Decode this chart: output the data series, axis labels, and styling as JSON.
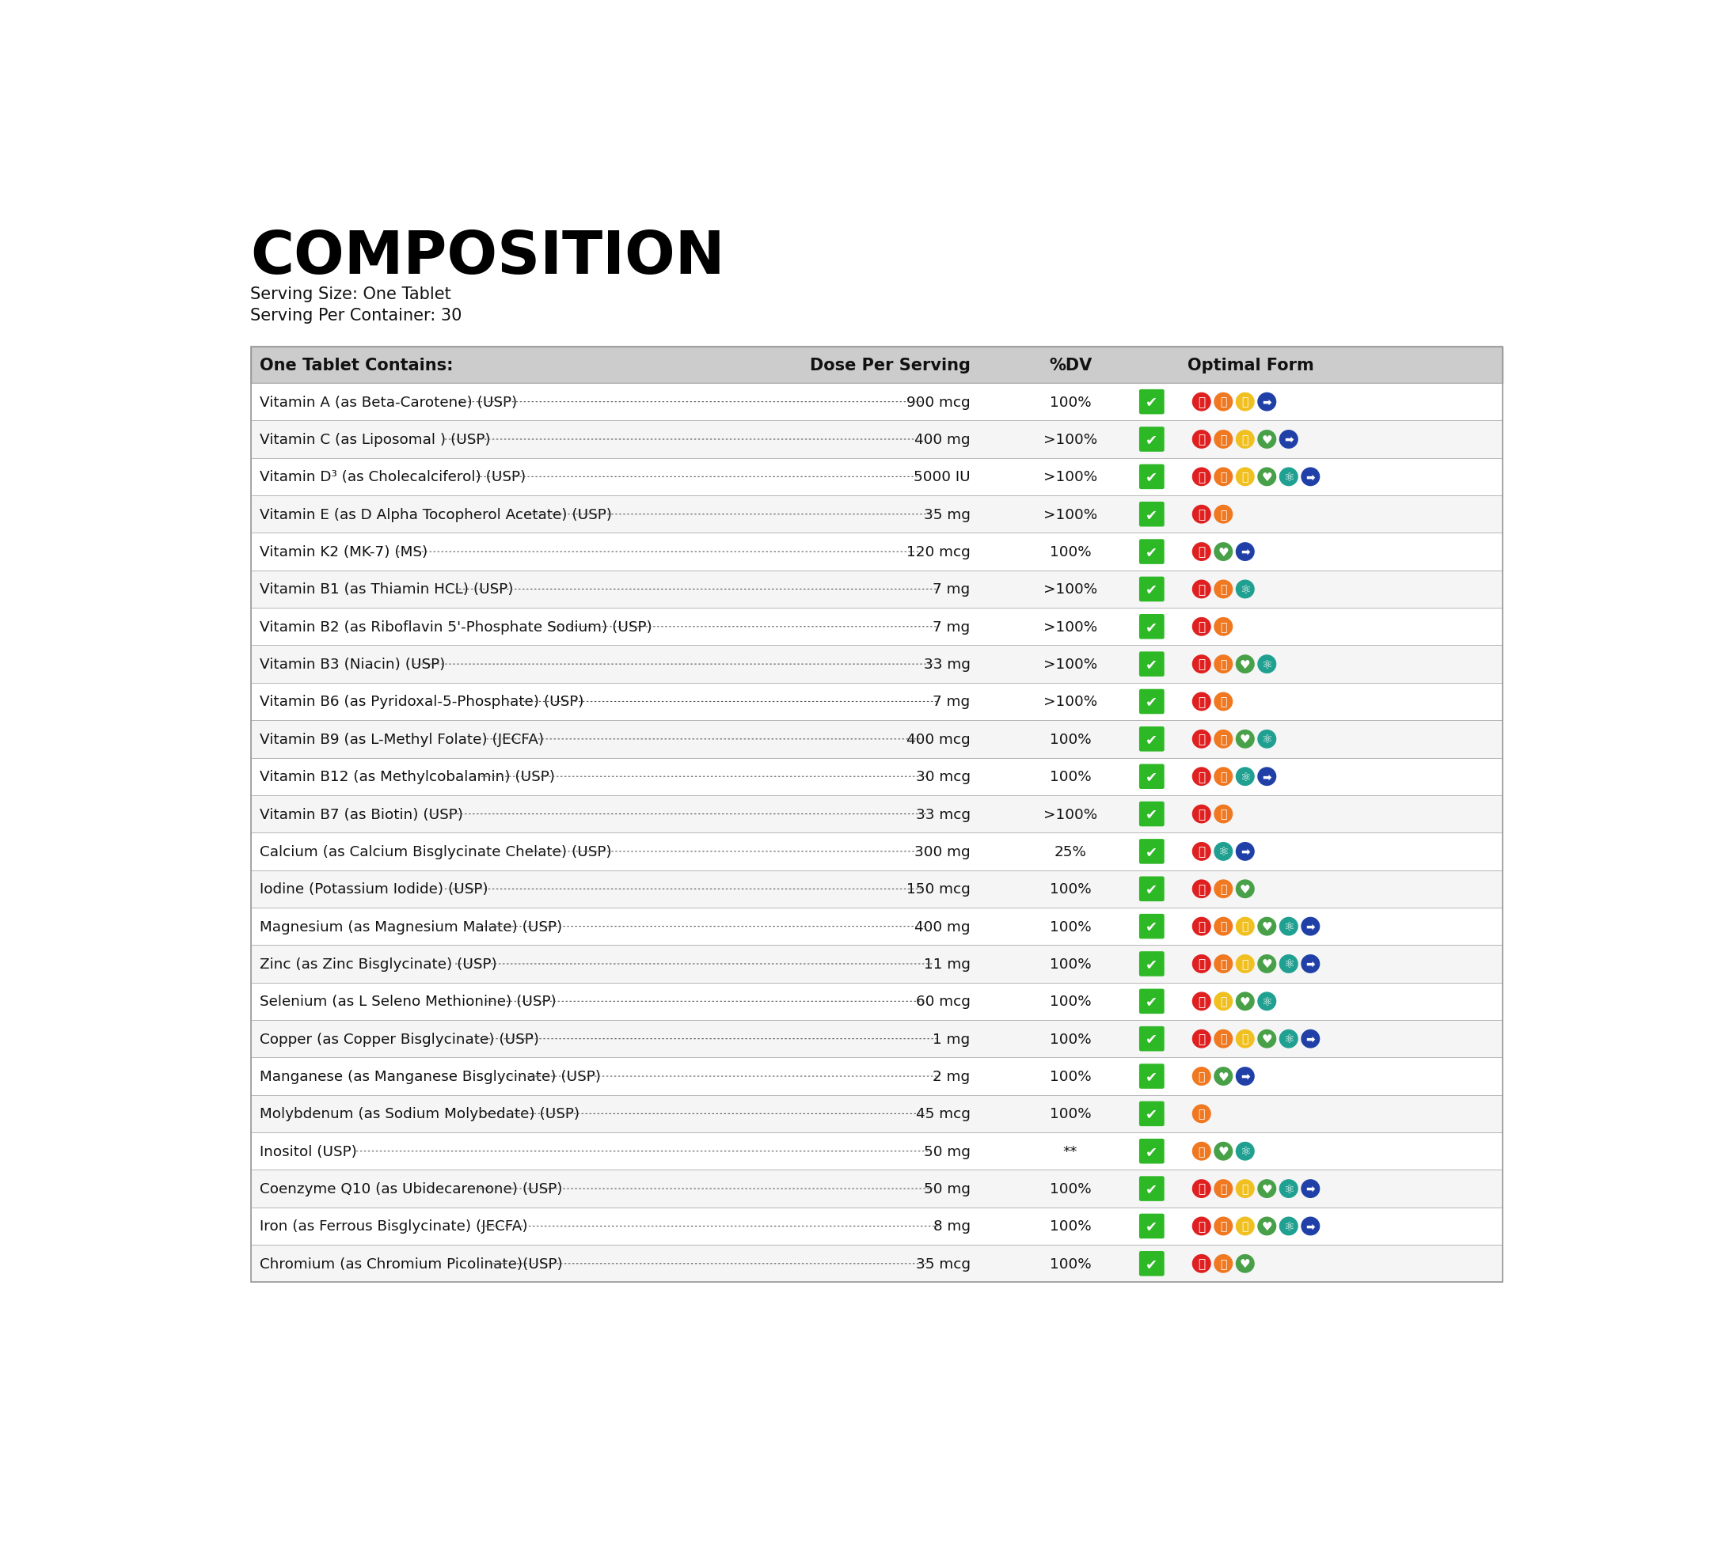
{
  "title": "COMPOSITION",
  "serving_size": "Serving Size: One Tablet",
  "serving_per_container": "Serving Per Container: 30",
  "header": [
    "One Tablet Contains:",
    "Dose Per Serving",
    "%DV",
    "Optimal Form"
  ],
  "rows": [
    {
      "ingredient": "Vitamin A (as Beta-Carotene) (USP)",
      "dose": "900 mcg",
      "dv": "100%",
      "icons": [
        "red_run",
        "orange_hand",
        "yellow_shield",
        "blue_nav"
      ]
    },
    {
      "ingredient": "Vitamin C (as Liposomal ) (USP)",
      "dose": "400 mg",
      "dv": ">100%",
      "icons": [
        "red_run",
        "orange_hand",
        "yellow_shield",
        "green_heart",
        "blue_nav"
      ]
    },
    {
      "ingredient": "Vitamin D³ (as Cholecalciferol) (USP)",
      "dose": "5000 IU",
      "dv": ">100%",
      "icons": [
        "red_run",
        "orange_hand",
        "yellow_shield",
        "green_heart",
        "teal_atom",
        "blue_nav"
      ]
    },
    {
      "ingredient": "Vitamin E (as D Alpha Tocopherol Acetate) (USP)",
      "dose": "35 mg",
      "dv": ">100%",
      "icons": [
        "red_run",
        "orange_hand"
      ]
    },
    {
      "ingredient": "Vitamin K2 (MK-7) (MS)",
      "dose": "120 mcg",
      "dv": "100%",
      "icons": [
        "red_run",
        "green_heart",
        "blue_nav"
      ]
    },
    {
      "ingredient": "Vitamin B1 (as Thiamin HCL) (USP)",
      "dose": "7 mg",
      "dv": ">100%",
      "icons": [
        "red_run",
        "orange_hand",
        "teal_atom"
      ]
    },
    {
      "ingredient": "Vitamin B2 (as Riboflavin 5'-Phosphate Sodium) (USP)",
      "dose": "7 mg",
      "dv": ">100%",
      "icons": [
        "red_run",
        "orange_hand"
      ]
    },
    {
      "ingredient": "Vitamin B3 (Niacin) (USP)",
      "dose": "33 mg",
      "dv": ">100%",
      "icons": [
        "red_run",
        "orange_hand",
        "green_heart",
        "teal_atom"
      ]
    },
    {
      "ingredient": "Vitamin B6 (as Pyridoxal-5-Phosphate) (USP)",
      "dose": "7 mg",
      "dv": ">100%",
      "icons": [
        "red_run",
        "orange_hand"
      ]
    },
    {
      "ingredient": "Vitamin B9 (as L-Methyl Folate) (JECFA)",
      "dose": "400 mcg",
      "dv": "100%",
      "icons": [
        "red_run",
        "orange_hand",
        "green_heart",
        "teal_atom"
      ]
    },
    {
      "ingredient": "Vitamin B12 (as Methylcobalamin) (USP)",
      "dose": "30 mcg",
      "dv": "100%",
      "icons": [
        "red_run",
        "orange_hand",
        "teal_atom",
        "blue_nav"
      ]
    },
    {
      "ingredient": "Vitamin B7 (as Biotin) (USP)",
      "dose": "33 mcg",
      "dv": ">100%",
      "icons": [
        "red_run",
        "orange_hand"
      ]
    },
    {
      "ingredient": "Calcium (as Calcium Bisglycinate Chelate) (USP)",
      "dose": "300 mg",
      "dv": "25%",
      "icons": [
        "red_run",
        "teal_atom",
        "blue_nav"
      ]
    },
    {
      "ingredient": "Iodine (Potassium Iodide) (USP)",
      "dose": "150 mcg",
      "dv": "100%",
      "icons": [
        "red_run",
        "orange_hand",
        "green_heart"
      ]
    },
    {
      "ingredient": "Magnesium (as Magnesium Malate) (USP)",
      "dose": "400 mg",
      "dv": "100%",
      "icons": [
        "red_run",
        "orange_hand",
        "yellow_shield",
        "green_heart",
        "teal_atom",
        "blue_nav"
      ]
    },
    {
      "ingredient": "Zinc (as Zinc Bisglycinate) (USP)",
      "dose": "11 mg",
      "dv": "100%",
      "icons": [
        "red_run",
        "orange_hand",
        "yellow_shield",
        "green_heart",
        "teal_atom",
        "blue_nav"
      ]
    },
    {
      "ingredient": "Selenium (as L Seleno Methionine) (USP)",
      "dose": "60 mcg",
      "dv": "100%",
      "icons": [
        "red_run",
        "yellow_shield",
        "green_heart",
        "teal_atom"
      ]
    },
    {
      "ingredient": "Copper (as Copper Bisglycinate) (USP)",
      "dose": "1 mg",
      "dv": "100%",
      "icons": [
        "red_run",
        "orange_hand",
        "yellow_shield",
        "green_heart",
        "teal_atom",
        "blue_nav"
      ]
    },
    {
      "ingredient": "Manganese (as Manganese Bisglycinate) (USP)",
      "dose": "2 mg",
      "dv": "100%",
      "icons": [
        "orange_hand",
        "green_heart",
        "blue_nav"
      ]
    },
    {
      "ingredient": "Molybdenum (as Sodium Molybedate) (USP)",
      "dose": "45 mcg",
      "dv": "100%",
      "icons": [
        "orange_hand"
      ]
    },
    {
      "ingredient": "Inositol (USP)",
      "dose": "50 mg",
      "dv": "**",
      "icons": [
        "orange_hand",
        "green_heart",
        "teal_atom"
      ]
    },
    {
      "ingredient": "Coenzyme Q10 (as Ubidecarenone) (USP)",
      "dose": "50 mg",
      "dv": "100%",
      "icons": [
        "red_run",
        "orange_hand",
        "yellow_shield",
        "green_heart",
        "teal_atom",
        "blue_nav"
      ]
    },
    {
      "ingredient": "Iron (as Ferrous Bisglycinate) (JECFA)",
      "dose": "8 mg",
      "dv": "100%",
      "icons": [
        "red_run",
        "orange_hand",
        "yellow_shield",
        "green_heart",
        "teal_atom",
        "blue_nav"
      ]
    },
    {
      "ingredient": "Chromium (as Chromium Picolinate)(USP)",
      "dose": "35 mcg",
      "dv": "100%",
      "icons": [
        "red_run",
        "orange_hand",
        "green_heart"
      ]
    }
  ],
  "icon_colors": {
    "red_run": "#e02020",
    "orange_hand": "#f07820",
    "yellow_shield": "#f0c020",
    "green_heart": "#48a048",
    "teal_atom": "#20a090",
    "blue_nav": "#2040a8",
    "purple_brain": "#7020a0"
  },
  "bg_color": "#ffffff",
  "header_bg": "#cccccc",
  "row_bg_even": "#ffffff",
  "row_bg_odd": "#f5f5f5",
  "border_color": "#999999",
  "title_color": "#000000",
  "text_color": "#111111",
  "check_color": "#2db825",
  "check_bg": "#2db825"
}
